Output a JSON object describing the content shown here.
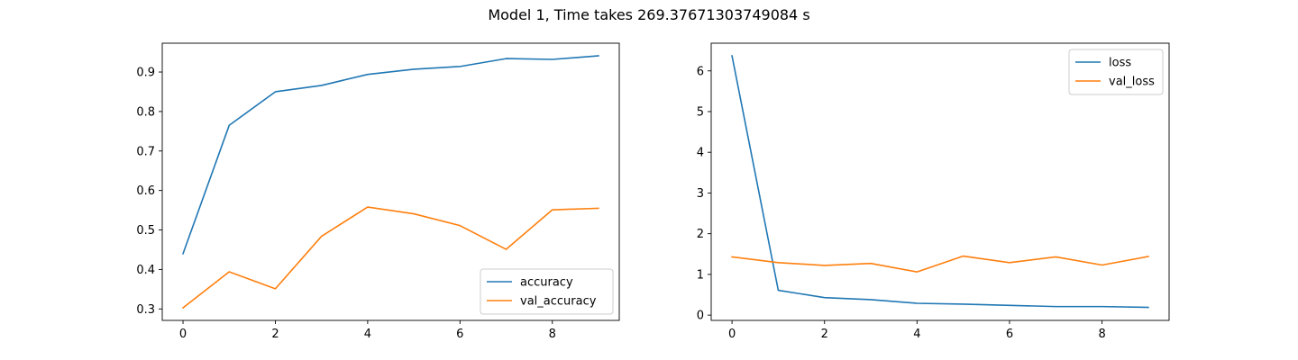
{
  "figure": {
    "title": "Model 1, Time takes 269.37671303749084 s"
  },
  "chart_data": [
    {
      "type": "line",
      "title": "",
      "xlabel": "",
      "ylabel": "",
      "x": [
        0,
        1,
        2,
        3,
        4,
        5,
        6,
        7,
        8,
        9
      ],
      "xlim": [
        -0.45,
        9.45
      ],
      "ylim": [
        0.271,
        0.973
      ],
      "xticks": [
        0,
        2,
        4,
        6,
        8
      ],
      "yticks": [
        0.3,
        0.4,
        0.5,
        0.6,
        0.7,
        0.8,
        0.9
      ],
      "grid": false,
      "legend_position": "lower right",
      "series": [
        {
          "name": "accuracy",
          "color": "#1f77b4",
          "values": [
            0.44,
            0.765,
            0.85,
            0.866,
            0.894,
            0.907,
            0.914,
            0.934,
            0.932,
            0.941
          ]
        },
        {
          "name": "val_accuracy",
          "color": "#ff7f0e",
          "values": [
            0.303,
            0.394,
            0.351,
            0.484,
            0.558,
            0.541,
            0.511,
            0.451,
            0.551,
            0.555
          ]
        }
      ]
    },
    {
      "type": "line",
      "title": "",
      "xlabel": "",
      "ylabel": "",
      "x": [
        0,
        1,
        2,
        3,
        4,
        5,
        6,
        7,
        8,
        9
      ],
      "xlim": [
        -0.45,
        9.45
      ],
      "ylim": [
        -0.13,
        6.68
      ],
      "xticks": [
        0,
        2,
        4,
        6,
        8
      ],
      "yticks": [
        0,
        1,
        2,
        3,
        4,
        5,
        6
      ],
      "grid": false,
      "legend_position": "upper right",
      "series": [
        {
          "name": "loss",
          "color": "#1f77b4",
          "values": [
            6.37,
            0.61,
            0.43,
            0.38,
            0.29,
            0.27,
            0.24,
            0.21,
            0.21,
            0.19
          ]
        },
        {
          "name": "val_loss",
          "color": "#ff7f0e",
          "values": [
            1.43,
            1.29,
            1.22,
            1.27,
            1.06,
            1.45,
            1.29,
            1.43,
            1.23,
            1.44
          ]
        }
      ]
    }
  ]
}
